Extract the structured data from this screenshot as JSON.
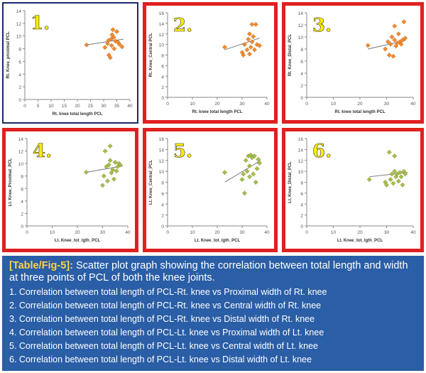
{
  "figure": {
    "label": "[Table/Fig-5]:",
    "description": "Scatter plot graph showing the correlation between total length and width at three points of PCL of both the knee joints.",
    "items": [
      "1. Correlation between total length of PCL-Rt. knee vs Proximal width of Rt. knee",
      "2. Correlation between total length of PCL-Rt. knee vs Central width of Rt. knee",
      "3. Correlation between total length of PCL-Rt. knee vs Distal width of Rt. knee",
      "4. Correlation between total length of PCL-Lt. knee vs Proximal width of Lt. knee",
      "5. Correlation between total length of PCL-Lt. knee vs Central width of Lt. knee",
      "6. Correlation between total length of PCL-Lt. knee vs Distal width of Lt. knee"
    ]
  },
  "chart_data": [
    {
      "type": "scatter",
      "number": "1.",
      "border_color": "#1a2a6a",
      "marker_color": "#f08a30",
      "xlabel": "Rt. knee total length PCL",
      "ylabel": "Rt. Knee_proximal PCL",
      "xlim": [
        0,
        40
      ],
      "ylim": [
        0,
        14
      ],
      "xticks": [
        0,
        5,
        10,
        15,
        20,
        25,
        30,
        35,
        40
      ],
      "yticks": [
        0,
        2,
        4,
        6,
        8,
        10,
        12,
        14
      ],
      "x": [
        23.5,
        30.5,
        31.5,
        31.8,
        32.0,
        32.5,
        32.8,
        33.0,
        33.2,
        33.5,
        33.8,
        34.0,
        34.5,
        35.0,
        35.5,
        36.0,
        37.0
      ],
      "y": [
        8.6,
        8.2,
        8.8,
        9.3,
        7.0,
        6.6,
        9.5,
        8.5,
        10.2,
        11.0,
        9.8,
        8.0,
        9.2,
        10.7,
        9.0,
        8.7,
        8.3
      ],
      "trend": [
        [
          23.5,
          8.6
        ],
        [
          37.5,
          9.5
        ]
      ]
    },
    {
      "type": "scatter",
      "number": "2.",
      "border_color": "#e02020",
      "marker_color": "#f08a30",
      "xlabel": "Rt. knee total length PCL",
      "ylabel": "Rt. Knee_Central PCL",
      "xlim": [
        0,
        40
      ],
      "ylim": [
        0,
        16
      ],
      "xticks": [
        0,
        10,
        20,
        30,
        40
      ],
      "yticks": [
        0,
        2,
        4,
        6,
        8,
        10,
        12,
        14,
        16
      ],
      "x": [
        23.0,
        30.0,
        30.5,
        31.0,
        32.0,
        32.5,
        33.0,
        33.0,
        33.5,
        34.0,
        34.0,
        34.5,
        35.0,
        35.5,
        36.0,
        37.0
      ],
      "y": [
        9.5,
        8.5,
        8.0,
        10.0,
        9.0,
        11.0,
        8.2,
        12.0,
        9.5,
        10.5,
        13.8,
        11.5,
        9.0,
        13.8,
        10.0,
        9.8
      ],
      "trend": [
        [
          23.0,
          9.0
        ],
        [
          37.0,
          11.2
        ]
      ]
    },
    {
      "type": "scatter",
      "number": "3.",
      "border_color": "#e02020",
      "marker_color": "#f08a30",
      "xlabel": "Rt. knee total length PCL",
      "ylabel": "Rt. Knee_Distal_PCL",
      "xlim": [
        0,
        40
      ],
      "ylim": [
        0,
        14
      ],
      "xticks": [
        0,
        10,
        20,
        30,
        40
      ],
      "yticks": [
        0,
        2,
        4,
        6,
        8,
        10,
        12,
        14
      ],
      "x": [
        23.0,
        29.5,
        30.5,
        31.0,
        31.5,
        32.0,
        32.5,
        33.0,
        33.0,
        33.5,
        34.0,
        34.5,
        35.0,
        35.5,
        36.0,
        36.5,
        37.0
      ],
      "y": [
        8.6,
        8.0,
        9.2,
        7.0,
        8.8,
        10.0,
        6.8,
        9.5,
        11.8,
        8.5,
        9.0,
        10.5,
        9.2,
        8.8,
        9.5,
        12.5,
        9.8
      ],
      "trend": [
        [
          23.0,
          8.0
        ],
        [
          37.0,
          9.4
        ]
      ]
    },
    {
      "type": "scatter",
      "number": "4.",
      "border_color": "#e02020",
      "marker_color": "#9bc24f",
      "xlabel": "Lt. Knee_tot_lgth_PCL",
      "ylabel": "Lt. Knee_Proximal_PCL",
      "xlim": [
        0,
        40
      ],
      "ylim": [
        0,
        14
      ],
      "xticks": [
        0,
        10,
        20,
        30,
        40
      ],
      "yticks": [
        0,
        2,
        4,
        6,
        8,
        10,
        12,
        14
      ],
      "x": [
        23.5,
        30.0,
        30.5,
        31.0,
        31.5,
        32.0,
        32.5,
        33.0,
        33.0,
        33.5,
        34.0,
        34.5,
        35.0,
        35.5,
        36.0,
        36.5,
        37.0
      ],
      "y": [
        8.6,
        6.5,
        8.0,
        12.0,
        9.5,
        7.2,
        9.8,
        10.5,
        12.8,
        8.5,
        9.0,
        7.5,
        10.2,
        8.8,
        9.5,
        10.0,
        9.8
      ],
      "trend": [
        [
          23.5,
          8.6
        ],
        [
          38.0,
          9.6
        ]
      ]
    },
    {
      "type": "scatter",
      "number": "5.",
      "border_color": "#e02020",
      "marker_color": "#9bc24f",
      "xlabel": "Lt. Knee_tot_lgth_PCL",
      "ylabel": "Lt. Knee_Central_PCL",
      "xlim": [
        0,
        40
      ],
      "ylim": [
        0,
        16
      ],
      "xticks": [
        0,
        10,
        20,
        30,
        40
      ],
      "yticks": [
        0,
        2,
        4,
        6,
        8,
        10,
        12,
        14,
        16
      ],
      "x": [
        23.0,
        30.0,
        30.5,
        31.0,
        31.5,
        32.0,
        32.5,
        33.0,
        33.0,
        33.5,
        34.0,
        34.5,
        35.0,
        35.5,
        36.0,
        36.5,
        37.0
      ],
      "y": [
        9.8,
        8.5,
        9.5,
        6.0,
        12.0,
        10.0,
        12.8,
        9.0,
        11.0,
        13.0,
        12.5,
        9.5,
        12.8,
        8.0,
        10.5,
        12.2,
        11.5
      ],
      "trend": [
        [
          23.0,
          8.0
        ],
        [
          37.5,
          12.0
        ]
      ]
    },
    {
      "type": "scatter",
      "number": "6.",
      "border_color": "#e02020",
      "marker_color": "#9bc24f",
      "xlabel": "Lt. Knee_tot_lgth_PCL",
      "ylabel": "Lt. Knee_Distal_PCL",
      "xlim": [
        0,
        40
      ],
      "ylim": [
        0,
        16
      ],
      "xticks": [
        0,
        10,
        20,
        30,
        40
      ],
      "yticks": [
        0,
        2,
        4,
        6,
        8,
        10,
        12,
        14,
        16
      ],
      "x": [
        23.5,
        29.5,
        30.0,
        31.0,
        31.5,
        32.0,
        32.5,
        33.0,
        33.0,
        33.5,
        34.0,
        34.5,
        35.0,
        35.5,
        36.0,
        36.5,
        37.0
      ],
      "y": [
        8.5,
        8.0,
        7.5,
        13.5,
        8.5,
        9.5,
        7.8,
        10.0,
        12.8,
        9.0,
        9.5,
        8.2,
        9.8,
        9.0,
        7.5,
        10.0,
        9.5
      ],
      "trend": [
        [
          23.5,
          9.0
        ],
        [
          38.0,
          9.8
        ]
      ]
    }
  ]
}
